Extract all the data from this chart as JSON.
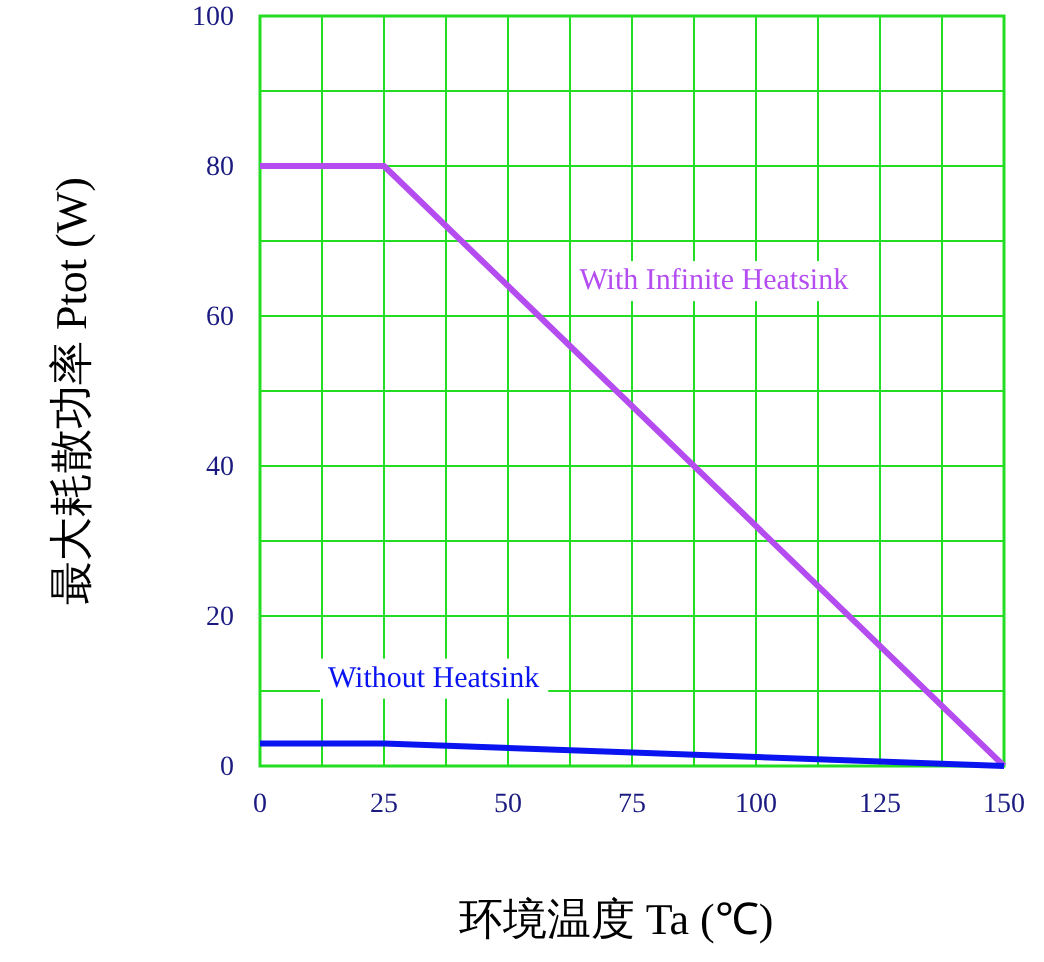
{
  "chart_data": {
    "type": "line",
    "xlabel": "环境温度    Ta (℃)",
    "ylabel": "最大耗散功率    Ptot (W)",
    "x": [
      0,
      25,
      150
    ],
    "series": [
      {
        "name": "With Infinite Heatsink",
        "color": "#b44cf0",
        "values": [
          80,
          80,
          0
        ]
      },
      {
        "name": "Without Heatsink",
        "color": "#0a14f0",
        "values": [
          3,
          3,
          0
        ]
      }
    ],
    "xlim": [
      0,
      150
    ],
    "xticks": [
      0,
      {
        "value": 12.5,
        "label": null
      },
      25,
      {
        "value": 37.5,
        "label": null
      },
      50,
      {
        "value": 62.5,
        "label": null
      },
      75,
      {
        "value": 87.5,
        "label": null
      },
      100,
      {
        "value": 112.5,
        "label": null
      },
      125,
      {
        "value": 137.5,
        "label": null
      },
      150
    ],
    "ylim": [
      0,
      100
    ],
    "yticks": [
      0,
      {
        "value": 10,
        "label": null
      },
      20,
      {
        "value": 30,
        "label": null
      },
      40,
      {
        "value": 50,
        "label": null
      },
      60,
      {
        "value": 70,
        "label": null
      },
      80,
      {
        "value": 90,
        "label": null
      },
      100
    ],
    "grid": true,
    "line_style": "solid",
    "marker": "none"
  }
}
